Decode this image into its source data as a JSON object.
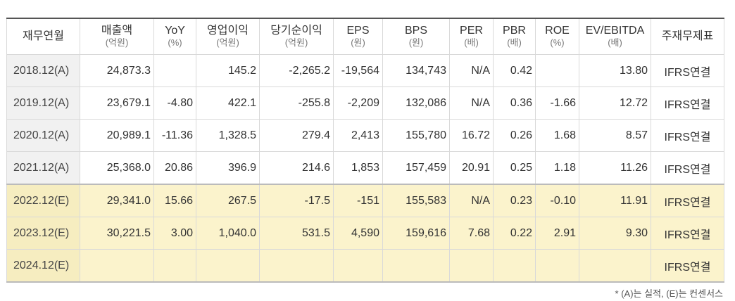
{
  "columns": [
    {
      "label": "재무연월",
      "unit": ""
    },
    {
      "label": "매출액",
      "unit": "(억원)"
    },
    {
      "label": "YoY",
      "unit": "(%)"
    },
    {
      "label": "영업이익",
      "unit": "(억원)"
    },
    {
      "label": "당기순이익",
      "unit": "(억원)"
    },
    {
      "label": "EPS",
      "unit": "(원)"
    },
    {
      "label": "BPS",
      "unit": "(원)"
    },
    {
      "label": "PER",
      "unit": "(배)"
    },
    {
      "label": "PBR",
      "unit": "(배)"
    },
    {
      "label": "ROE",
      "unit": "(%)"
    },
    {
      "label": "EV/EBITDA",
      "unit": "(배)"
    },
    {
      "label": "주재무제표",
      "unit": ""
    }
  ],
  "rows": [
    {
      "estimate": false,
      "cells": [
        "2018.12(A)",
        "24,873.3",
        "",
        "145.2",
        "-2,265.2",
        "-19,564",
        "134,743",
        "N/A",
        "0.42",
        "",
        "13.80",
        "IFRS연결"
      ]
    },
    {
      "estimate": false,
      "cells": [
        "2019.12(A)",
        "23,679.1",
        "-4.80",
        "422.1",
        "-255.8",
        "-2,209",
        "132,086",
        "N/A",
        "0.36",
        "-1.66",
        "12.72",
        "IFRS연결"
      ]
    },
    {
      "estimate": false,
      "cells": [
        "2020.12(A)",
        "20,989.1",
        "-11.36",
        "1,328.5",
        "279.4",
        "2,413",
        "155,780",
        "16.72",
        "0.26",
        "1.68",
        "8.57",
        "IFRS연결"
      ]
    },
    {
      "estimate": false,
      "cells": [
        "2021.12(A)",
        "25,368.0",
        "20.86",
        "396.9",
        "214.6",
        "1,853",
        "157,459",
        "20.91",
        "0.25",
        "1.18",
        "11.26",
        "IFRS연결"
      ]
    },
    {
      "estimate": true,
      "cells": [
        "2022.12(E)",
        "29,341.0",
        "15.66",
        "267.5",
        "-17.5",
        "-151",
        "155,583",
        "N/A",
        "0.23",
        "-0.10",
        "11.91",
        "IFRS연결"
      ]
    },
    {
      "estimate": true,
      "cells": [
        "2023.12(E)",
        "30,221.5",
        "3.00",
        "1,040.0",
        "531.5",
        "4,590",
        "159,616",
        "7.68",
        "0.22",
        "2.91",
        "9.30",
        "IFRS연결"
      ]
    },
    {
      "estimate": true,
      "cells": [
        "2024.12(E)",
        "",
        "",
        "",
        "",
        "",
        "",
        "",
        "",
        "",
        "",
        "IFRS연결"
      ]
    }
  ],
  "note": "* (A)는 실적, (E)는 컨센서스",
  "colors": {
    "estimate_bg": "#fbf3cc",
    "period_bg": "#f1f1f1",
    "border": "#d9d9d9"
  }
}
